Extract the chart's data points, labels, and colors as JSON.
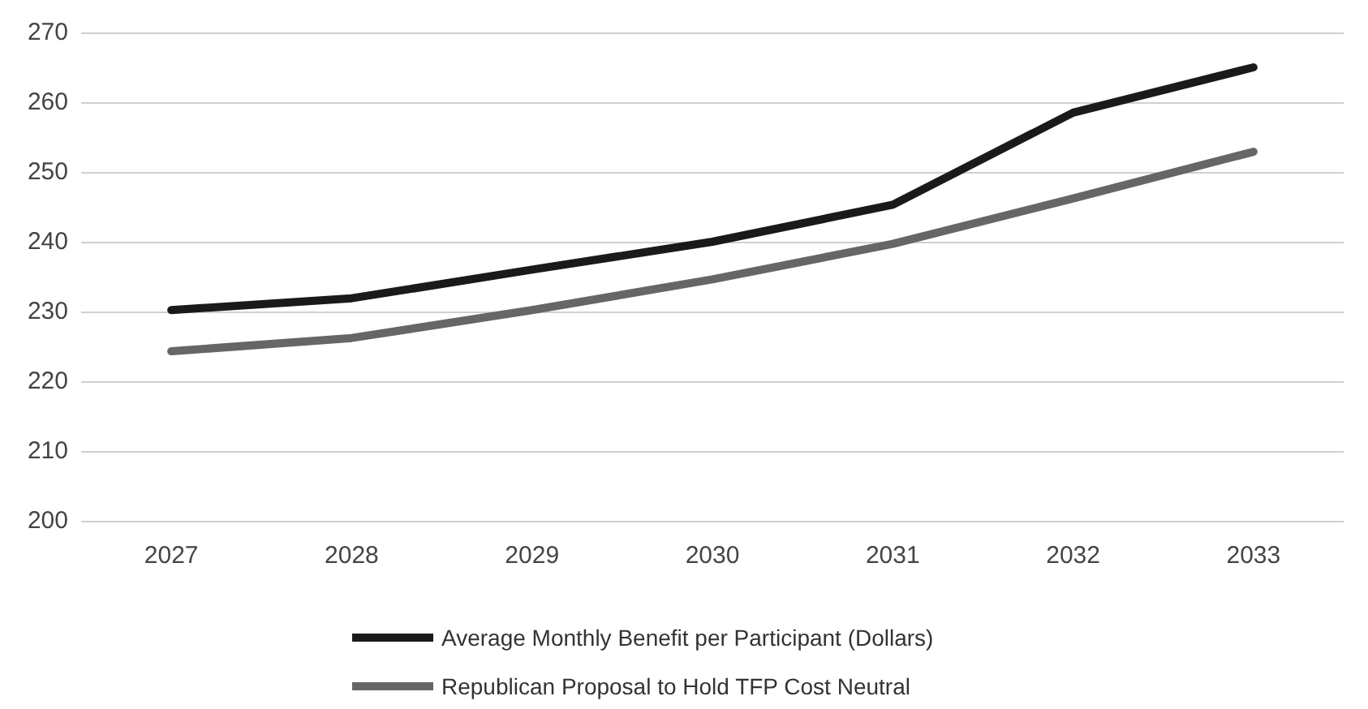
{
  "chart_data": {
    "type": "line",
    "categories": [
      "2027",
      "2028",
      "2029",
      "2030",
      "2031",
      "2032",
      "2033"
    ],
    "series": [
      {
        "name": "Average Monthly Benefit per Participant (Dollars)",
        "color": "#1a1a1a",
        "values": [
          230.2,
          231.9,
          236,
          240,
          245.3,
          258.5,
          265
        ]
      },
      {
        "name": "Republican Proposal to Hold TFP Cost Neutral",
        "color": "#666666",
        "values": [
          224.3,
          226.2,
          230.2,
          234.6,
          239.7,
          246.2,
          252.9
        ]
      }
    ],
    "ylim": [
      200,
      270
    ],
    "yticks": [
      200,
      210,
      220,
      230,
      240,
      250,
      260,
      270
    ],
    "grid": "y",
    "legend": "bottom",
    "marker": "none",
    "line_style": "solid"
  }
}
